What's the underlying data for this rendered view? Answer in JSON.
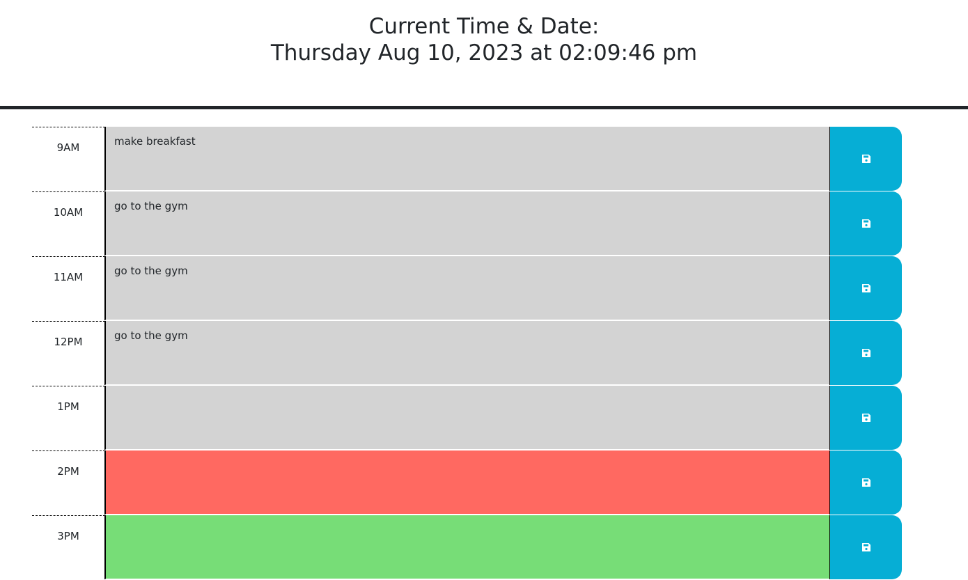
{
  "header": {
    "title_line1": "Current Time & Date:",
    "title_line2": "Thursday Aug 10, 2023 at 02:09:46 pm"
  },
  "colors": {
    "past": "#d3d3d3",
    "present": "#ff6961",
    "future": "#77dd77",
    "save_button": "#06aed5"
  },
  "schedule": {
    "save_icon": "floppy-disk-icon",
    "rows": [
      {
        "hour": "9AM",
        "text": "make breakfast",
        "state": "past"
      },
      {
        "hour": "10AM",
        "text": "go to the gym",
        "state": "past"
      },
      {
        "hour": "11AM",
        "text": "go to the gym",
        "state": "past"
      },
      {
        "hour": "12PM",
        "text": "go to the gym",
        "state": "past"
      },
      {
        "hour": "1PM",
        "text": "",
        "state": "past"
      },
      {
        "hour": "2PM",
        "text": "",
        "state": "present"
      },
      {
        "hour": "3PM",
        "text": "",
        "state": "future"
      }
    ]
  }
}
